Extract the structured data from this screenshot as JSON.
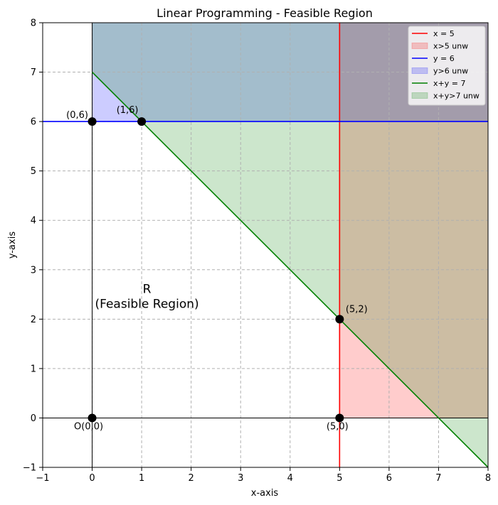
{
  "chart_data": {
    "type": "line",
    "title": "Linear Programming - Feasible Region",
    "xlabel": "x-axis",
    "ylabel": "y-axis",
    "xlim": [
      -1,
      8
    ],
    "ylim": [
      -1,
      8
    ],
    "xticks": [
      "−1",
      "0",
      "1",
      "2",
      "3",
      "4",
      "5",
      "6",
      "7",
      "8"
    ],
    "yticks": [
      "−1",
      "0",
      "1",
      "2",
      "3",
      "4",
      "5",
      "6",
      "7",
      "8"
    ],
    "grid": true,
    "legend_position": "top-right",
    "series": [
      {
        "name": "x = 5",
        "kind": "line",
        "color": "#ff0000",
        "x": [
          5,
          5
        ],
        "y": [
          -1,
          8
        ]
      },
      {
        "name": "x>5 unw",
        "kind": "fill",
        "color": "#ff0000",
        "opacity": 0.2
      },
      {
        "name": "y = 6",
        "kind": "line",
        "color": "#0000ff",
        "x": [
          -1,
          8
        ],
        "y": [
          6,
          6
        ]
      },
      {
        "name": "y>6 unw",
        "kind": "fill",
        "color": "#0000ff",
        "opacity": 0.2
      },
      {
        "name": "x+y = 7",
        "kind": "line",
        "color": "#008000",
        "x": [
          0,
          8
        ],
        "y": [
          7,
          -1
        ]
      },
      {
        "name": "x+y>7 unw",
        "kind": "fill",
        "color": "#008000",
        "opacity": 0.2
      }
    ],
    "points": [
      {
        "label": "O(0,0)",
        "x": 0,
        "y": 0
      },
      {
        "label": "(0,6)",
        "x": 0,
        "y": 6
      },
      {
        "label": "(1,6)",
        "x": 1,
        "y": 6
      },
      {
        "label": "(5,2)",
        "x": 5,
        "y": 2
      },
      {
        "label": "(5,0)",
        "x": 5,
        "y": 0
      }
    ],
    "annotations": [
      {
        "text": "R",
        "x": 1.1,
        "y": 2.5
      },
      {
        "text": "(Feasible Region)",
        "x": 1.1,
        "y": 2.2
      }
    ]
  }
}
